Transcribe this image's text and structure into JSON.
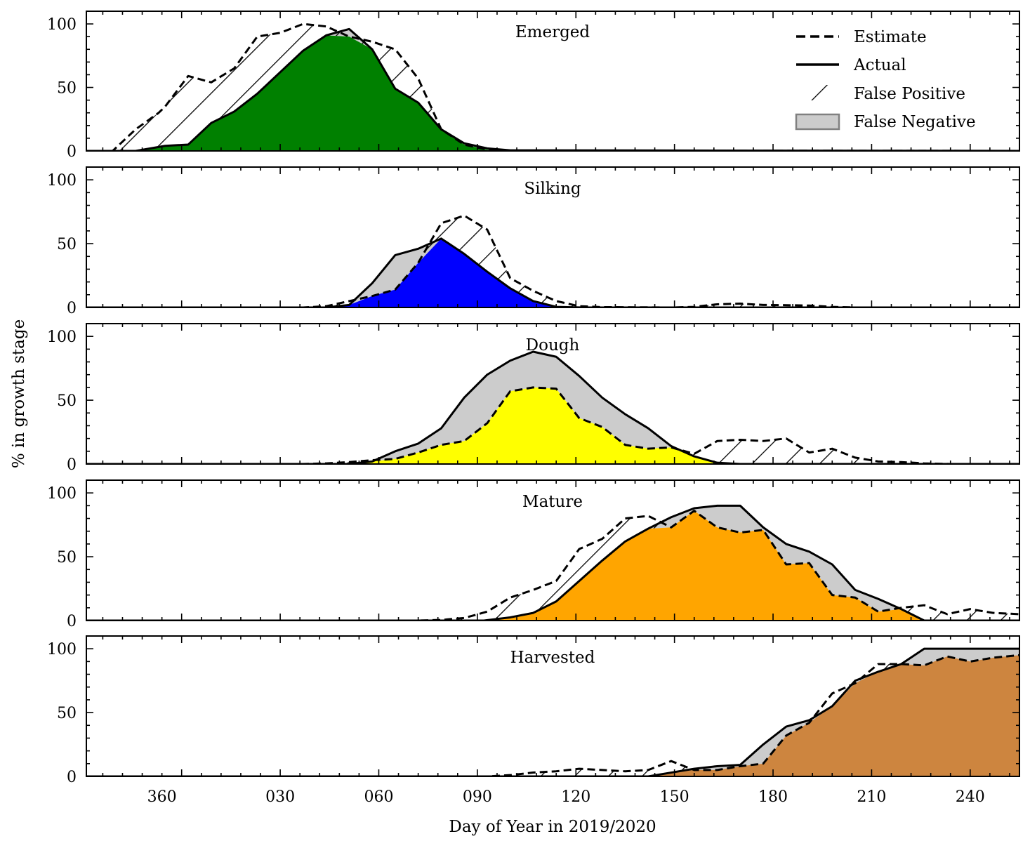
{
  "chart_data": {
    "type": "area",
    "xlabel": "Day of Year in 2019/2020",
    "ylabel": "% in growth stage",
    "x_domain": [
      -23,
      261
    ],
    "x_ticks": [
      {
        "value": 0,
        "label": "360"
      },
      {
        "value": 36,
        "label": "030"
      },
      {
        "value": 66,
        "label": "060"
      },
      {
        "value": 96,
        "label": "090"
      },
      {
        "value": 126,
        "label": "120"
      },
      {
        "value": 156,
        "label": "150"
      },
      {
        "value": 186,
        "label": "180"
      },
      {
        "value": 216,
        "label": "210"
      },
      {
        "value": 246,
        "label": "240"
      }
    ],
    "ylim": [
      0,
      110
    ],
    "y_ticks": [
      {
        "value": 0,
        "label": "0"
      },
      {
        "value": 50,
        "label": "50"
      },
      {
        "value": 100,
        "label": "100"
      }
    ],
    "legend": {
      "placement": "top-right",
      "items": [
        {
          "kind": "estimate",
          "label": "Estimate"
        },
        {
          "kind": "actual",
          "label": "Actual"
        },
        {
          "kind": "false_positive",
          "label": "False Positive"
        },
        {
          "kind": "false_negative",
          "label": "False Negative"
        }
      ]
    },
    "false_negative_color": "#cccccc",
    "panels": [
      {
        "title": "Emerged",
        "fill_color": "#008000",
        "actual": [
          [
            -23,
            0
          ],
          [
            -8,
            0
          ],
          [
            1,
            4
          ],
          [
            8,
            5
          ],
          [
            15,
            22
          ],
          [
            22,
            31
          ],
          [
            29,
            45
          ],
          [
            36,
            62
          ],
          [
            43,
            79
          ],
          [
            50,
            91
          ],
          [
            57,
            96
          ],
          [
            64,
            80
          ],
          [
            71,
            49
          ],
          [
            78,
            38
          ],
          [
            85,
            17
          ],
          [
            92,
            6
          ],
          [
            99,
            2
          ],
          [
            106,
            0.5
          ],
          [
            261,
            0
          ]
        ],
        "estimate": [
          [
            -23,
            0
          ],
          [
            -15,
            0
          ],
          [
            -8,
            17
          ],
          [
            -1,
            30
          ],
          [
            1,
            35
          ],
          [
            8,
            59
          ],
          [
            15,
            54
          ],
          [
            22,
            65
          ],
          [
            29,
            90
          ],
          [
            36,
            93
          ],
          [
            43,
            100
          ],
          [
            50,
            98
          ],
          [
            57,
            90
          ],
          [
            64,
            86
          ],
          [
            71,
            80
          ],
          [
            78,
            57
          ],
          [
            85,
            17
          ],
          [
            92,
            5
          ],
          [
            99,
            1
          ],
          [
            106,
            0.3
          ],
          [
            261,
            0
          ]
        ]
      },
      {
        "title": "Silking",
        "fill_color": "#0000ff",
        "actual": [
          [
            -23,
            0
          ],
          [
            50,
            0
          ],
          [
            57,
            2
          ],
          [
            64,
            19
          ],
          [
            71,
            41
          ],
          [
            78,
            46
          ],
          [
            85,
            54
          ],
          [
            92,
            42
          ],
          [
            99,
            28
          ],
          [
            106,
            15
          ],
          [
            113,
            5
          ],
          [
            120,
            0.5
          ],
          [
            128,
            0
          ],
          [
            261,
            0
          ]
        ],
        "estimate": [
          [
            -23,
            0
          ],
          [
            43,
            0
          ],
          [
            50,
            1
          ],
          [
            57,
            5
          ],
          [
            64,
            9
          ],
          [
            71,
            14
          ],
          [
            78,
            35
          ],
          [
            85,
            66
          ],
          [
            92,
            72
          ],
          [
            99,
            61
          ],
          [
            106,
            23
          ],
          [
            113,
            13
          ],
          [
            120,
            5
          ],
          [
            127,
            1
          ],
          [
            134,
            0.3
          ],
          [
            155,
            0
          ],
          [
            162,
            0.5
          ],
          [
            169,
            2.5
          ],
          [
            176,
            3
          ],
          [
            183,
            2
          ],
          [
            190,
            1.8
          ],
          [
            197,
            1.5
          ],
          [
            204,
            0.5
          ],
          [
            211,
            0
          ],
          [
            261,
            0
          ]
        ]
      },
      {
        "title": "Dough",
        "fill_color": "#ffff00",
        "actual": [
          [
            -23,
            0
          ],
          [
            57,
            0
          ],
          [
            64,
            2
          ],
          [
            71,
            10
          ],
          [
            78,
            16
          ],
          [
            85,
            28
          ],
          [
            92,
            52
          ],
          [
            99,
            70
          ],
          [
            106,
            81
          ],
          [
            113,
            88
          ],
          [
            120,
            84
          ],
          [
            127,
            69
          ],
          [
            134,
            52
          ],
          [
            141,
            39
          ],
          [
            148,
            28
          ],
          [
            155,
            14
          ],
          [
            162,
            6
          ],
          [
            169,
            1
          ],
          [
            176,
            0
          ],
          [
            261,
            0
          ]
        ],
        "estimate": [
          [
            -23,
            0
          ],
          [
            43,
            0
          ],
          [
            50,
            0.5
          ],
          [
            57,
            1.5
          ],
          [
            64,
            3
          ],
          [
            71,
            4
          ],
          [
            78,
            9
          ],
          [
            85,
            15
          ],
          [
            92,
            18
          ],
          [
            99,
            32
          ],
          [
            106,
            57
          ],
          [
            113,
            60
          ],
          [
            120,
            59
          ],
          [
            127,
            36
          ],
          [
            134,
            29
          ],
          [
            141,
            15
          ],
          [
            148,
            12
          ],
          [
            155,
            13
          ],
          [
            162,
            8
          ],
          [
            169,
            18
          ],
          [
            176,
            19
          ],
          [
            183,
            18
          ],
          [
            190,
            20
          ],
          [
            197,
            9
          ],
          [
            204,
            12
          ],
          [
            211,
            5
          ],
          [
            218,
            2
          ],
          [
            225,
            1.5
          ],
          [
            232,
            0.5
          ],
          [
            240,
            0
          ],
          [
            261,
            0
          ]
        ]
      },
      {
        "title": "Mature",
        "fill_color": "#ffa500",
        "actual": [
          [
            -23,
            0
          ],
          [
            98,
            0
          ],
          [
            106,
            2.5
          ],
          [
            113,
            6
          ],
          [
            120,
            15
          ],
          [
            127,
            31
          ],
          [
            134,
            47
          ],
          [
            141,
            62
          ],
          [
            148,
            72
          ],
          [
            155,
            81
          ],
          [
            162,
            88
          ],
          [
            169,
            90
          ],
          [
            176,
            90
          ],
          [
            183,
            73
          ],
          [
            190,
            60
          ],
          [
            197,
            54
          ],
          [
            204,
            44
          ],
          [
            211,
            24
          ],
          [
            218,
            17
          ],
          [
            225,
            9
          ],
          [
            232,
            0
          ],
          [
            261,
            0
          ]
        ],
        "estimate": [
          [
            -23,
            0
          ],
          [
            71,
            0
          ],
          [
            78,
            0
          ],
          [
            85,
            0.5
          ],
          [
            92,
            2
          ],
          [
            99,
            7
          ],
          [
            106,
            18
          ],
          [
            113,
            24
          ],
          [
            120,
            31
          ],
          [
            127,
            56
          ],
          [
            134,
            64
          ],
          [
            141,
            80
          ],
          [
            148,
            82
          ],
          [
            155,
            73
          ],
          [
            162,
            86
          ],
          [
            169,
            73
          ],
          [
            176,
            69
          ],
          [
            183,
            71
          ],
          [
            190,
            44
          ],
          [
            197,
            45
          ],
          [
            204,
            20
          ],
          [
            211,
            18
          ],
          [
            218,
            7
          ],
          [
            225,
            10
          ],
          [
            232,
            12
          ],
          [
            239,
            5
          ],
          [
            246,
            9
          ],
          [
            253,
            6
          ],
          [
            261,
            5
          ]
        ]
      },
      {
        "title": "Harvested",
        "fill_color": "#cd853f",
        "actual": [
          [
            -23,
            0
          ],
          [
            148,
            0
          ],
          [
            155,
            3
          ],
          [
            162,
            6
          ],
          [
            169,
            8
          ],
          [
            176,
            9
          ],
          [
            183,
            25
          ],
          [
            190,
            39
          ],
          [
            197,
            44
          ],
          [
            204,
            55
          ],
          [
            211,
            75
          ],
          [
            218,
            82
          ],
          [
            225,
            88
          ],
          [
            232,
            100
          ],
          [
            261,
            100
          ]
        ],
        "estimate": [
          [
            -23,
            0
          ],
          [
            99,
            0
          ],
          [
            106,
            1
          ],
          [
            113,
            3
          ],
          [
            120,
            4
          ],
          [
            127,
            6
          ],
          [
            134,
            5
          ],
          [
            141,
            4
          ],
          [
            148,
            5
          ],
          [
            155,
            12
          ],
          [
            162,
            5
          ],
          [
            169,
            5
          ],
          [
            176,
            8
          ],
          [
            183,
            10
          ],
          [
            190,
            32
          ],
          [
            197,
            42
          ],
          [
            204,
            65
          ],
          [
            211,
            73
          ],
          [
            218,
            88
          ],
          [
            225,
            88
          ],
          [
            232,
            87
          ],
          [
            239,
            94
          ],
          [
            246,
            90
          ],
          [
            253,
            93
          ],
          [
            261,
            95
          ]
        ]
      }
    ]
  }
}
